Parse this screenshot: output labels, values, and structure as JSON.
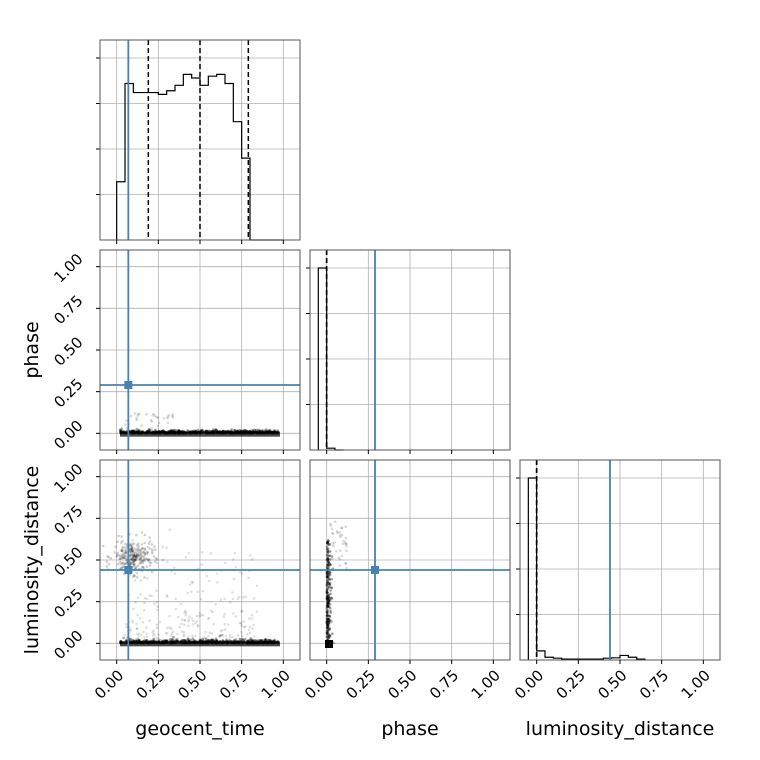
{
  "chart_data": {
    "type": "corner",
    "parameters": [
      "geocent_time",
      "phase",
      "luminosity_distance"
    ],
    "tick_labels": [
      "0.00",
      "0.25",
      "0.50",
      "0.75",
      "1.00"
    ],
    "axis_range": [
      -0.1,
      1.1
    ],
    "grid": true,
    "colors": {
      "truth": "#4682b4",
      "hist": "#000000",
      "grid": "#b0b0b0"
    },
    "truths": {
      "geocent_time": 0.07,
      "phase": 0.29,
      "luminosity_distance": 0.44
    },
    "quantiles": {
      "geocent_time": [
        0.19,
        0.5,
        0.79
      ],
      "phase": [
        0.0,
        0.0,
        0.0
      ],
      "luminosity_distance": [
        0.0,
        0.0,
        0.0
      ]
    },
    "histograms": {
      "geocent_time": {
        "edges": [
          0.0,
          0.05,
          0.1,
          0.15,
          0.2,
          0.25,
          0.3,
          0.35,
          0.4,
          0.45,
          0.5,
          0.55,
          0.6,
          0.65,
          0.7,
          0.75,
          0.8,
          0.85,
          0.9,
          0.95,
          1.0
        ],
        "counts": [
          0.32,
          0.86,
          0.81,
          0.81,
          0.81,
          0.8,
          0.82,
          0.85,
          0.91,
          0.89,
          0.85,
          0.9,
          0.91,
          0.86,
          0.65,
          0.45,
          0.0,
          0.0,
          0.0,
          0.0
        ],
        "ymax": 1.0
      },
      "phase": {
        "edges": [
          -0.05,
          0.0,
          0.05,
          0.1
        ],
        "counts": [
          1.0,
          0.01,
          0.0
        ],
        "ymax": 1.0
      },
      "luminosity_distance": {
        "edges": [
          -0.05,
          0.0,
          0.05,
          0.1,
          0.15,
          0.2,
          0.25,
          0.3,
          0.35,
          0.4,
          0.45,
          0.5,
          0.55,
          0.6,
          0.65
        ],
        "counts": [
          1.0,
          0.05,
          0.015,
          0.01,
          0.005,
          0.005,
          0.005,
          0.005,
          0.005,
          0.01,
          0.012,
          0.025,
          0.015,
          0.005
        ],
        "ymax": 1.0
      }
    },
    "panels": [
      {
        "row": 0,
        "col": 0,
        "kind": "hist",
        "param": "geocent_time"
      },
      {
        "row": 1,
        "col": 0,
        "kind": "scatter",
        "x": "geocent_time",
        "y": "phase"
      },
      {
        "row": 1,
        "col": 1,
        "kind": "hist",
        "param": "phase"
      },
      {
        "row": 2,
        "col": 0,
        "kind": "scatter",
        "x": "geocent_time",
        "y": "luminosity_distance"
      },
      {
        "row": 2,
        "col": 1,
        "kind": "scatter",
        "x": "phase",
        "y": "luminosity_distance"
      },
      {
        "row": 2,
        "col": 2,
        "kind": "hist",
        "param": "luminosity_distance"
      }
    ]
  }
}
